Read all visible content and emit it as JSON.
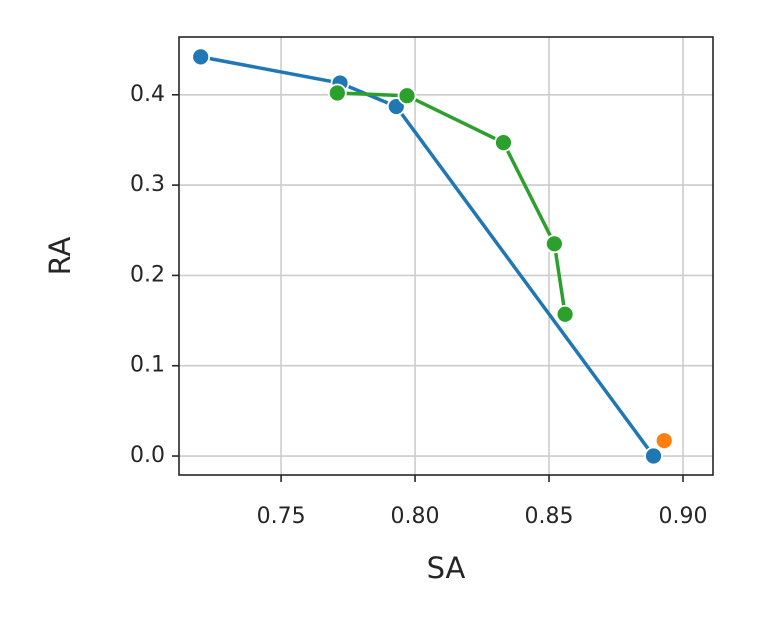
{
  "chart_data": {
    "type": "line",
    "xlabel": "SA",
    "ylabel": "RA",
    "series": [
      {
        "color": "#1f77b4",
        "x": [
          0.72,
          0.772,
          0.793,
          0.889
        ],
        "values": [
          0.442,
          0.413,
          0.387,
          0.0
        ]
      },
      {
        "color": "#2ca02c",
        "x": [
          0.771,
          0.797,
          0.833,
          0.852,
          0.856
        ],
        "values": [
          0.402,
          0.399,
          0.347,
          0.235,
          0.157
        ]
      },
      {
        "color": "#ff7f0e",
        "x": [
          0.893
        ],
        "values": [
          0.017
        ]
      }
    ],
    "xlim": [
      0.7119,
      0.9112
    ],
    "ylim": [
      -0.021,
      0.464
    ],
    "xticks": [
      0.75,
      {
        "value": 0.8,
        "label": "0.80"
      },
      0.85,
      {
        "value": 0.9,
        "label": "0.90"
      }
    ],
    "yticks": [
      {
        "value": 0,
        "label": "0.0"
      },
      0.1,
      0.2,
      0.3,
      0.4
    ],
    "grid": true
  }
}
